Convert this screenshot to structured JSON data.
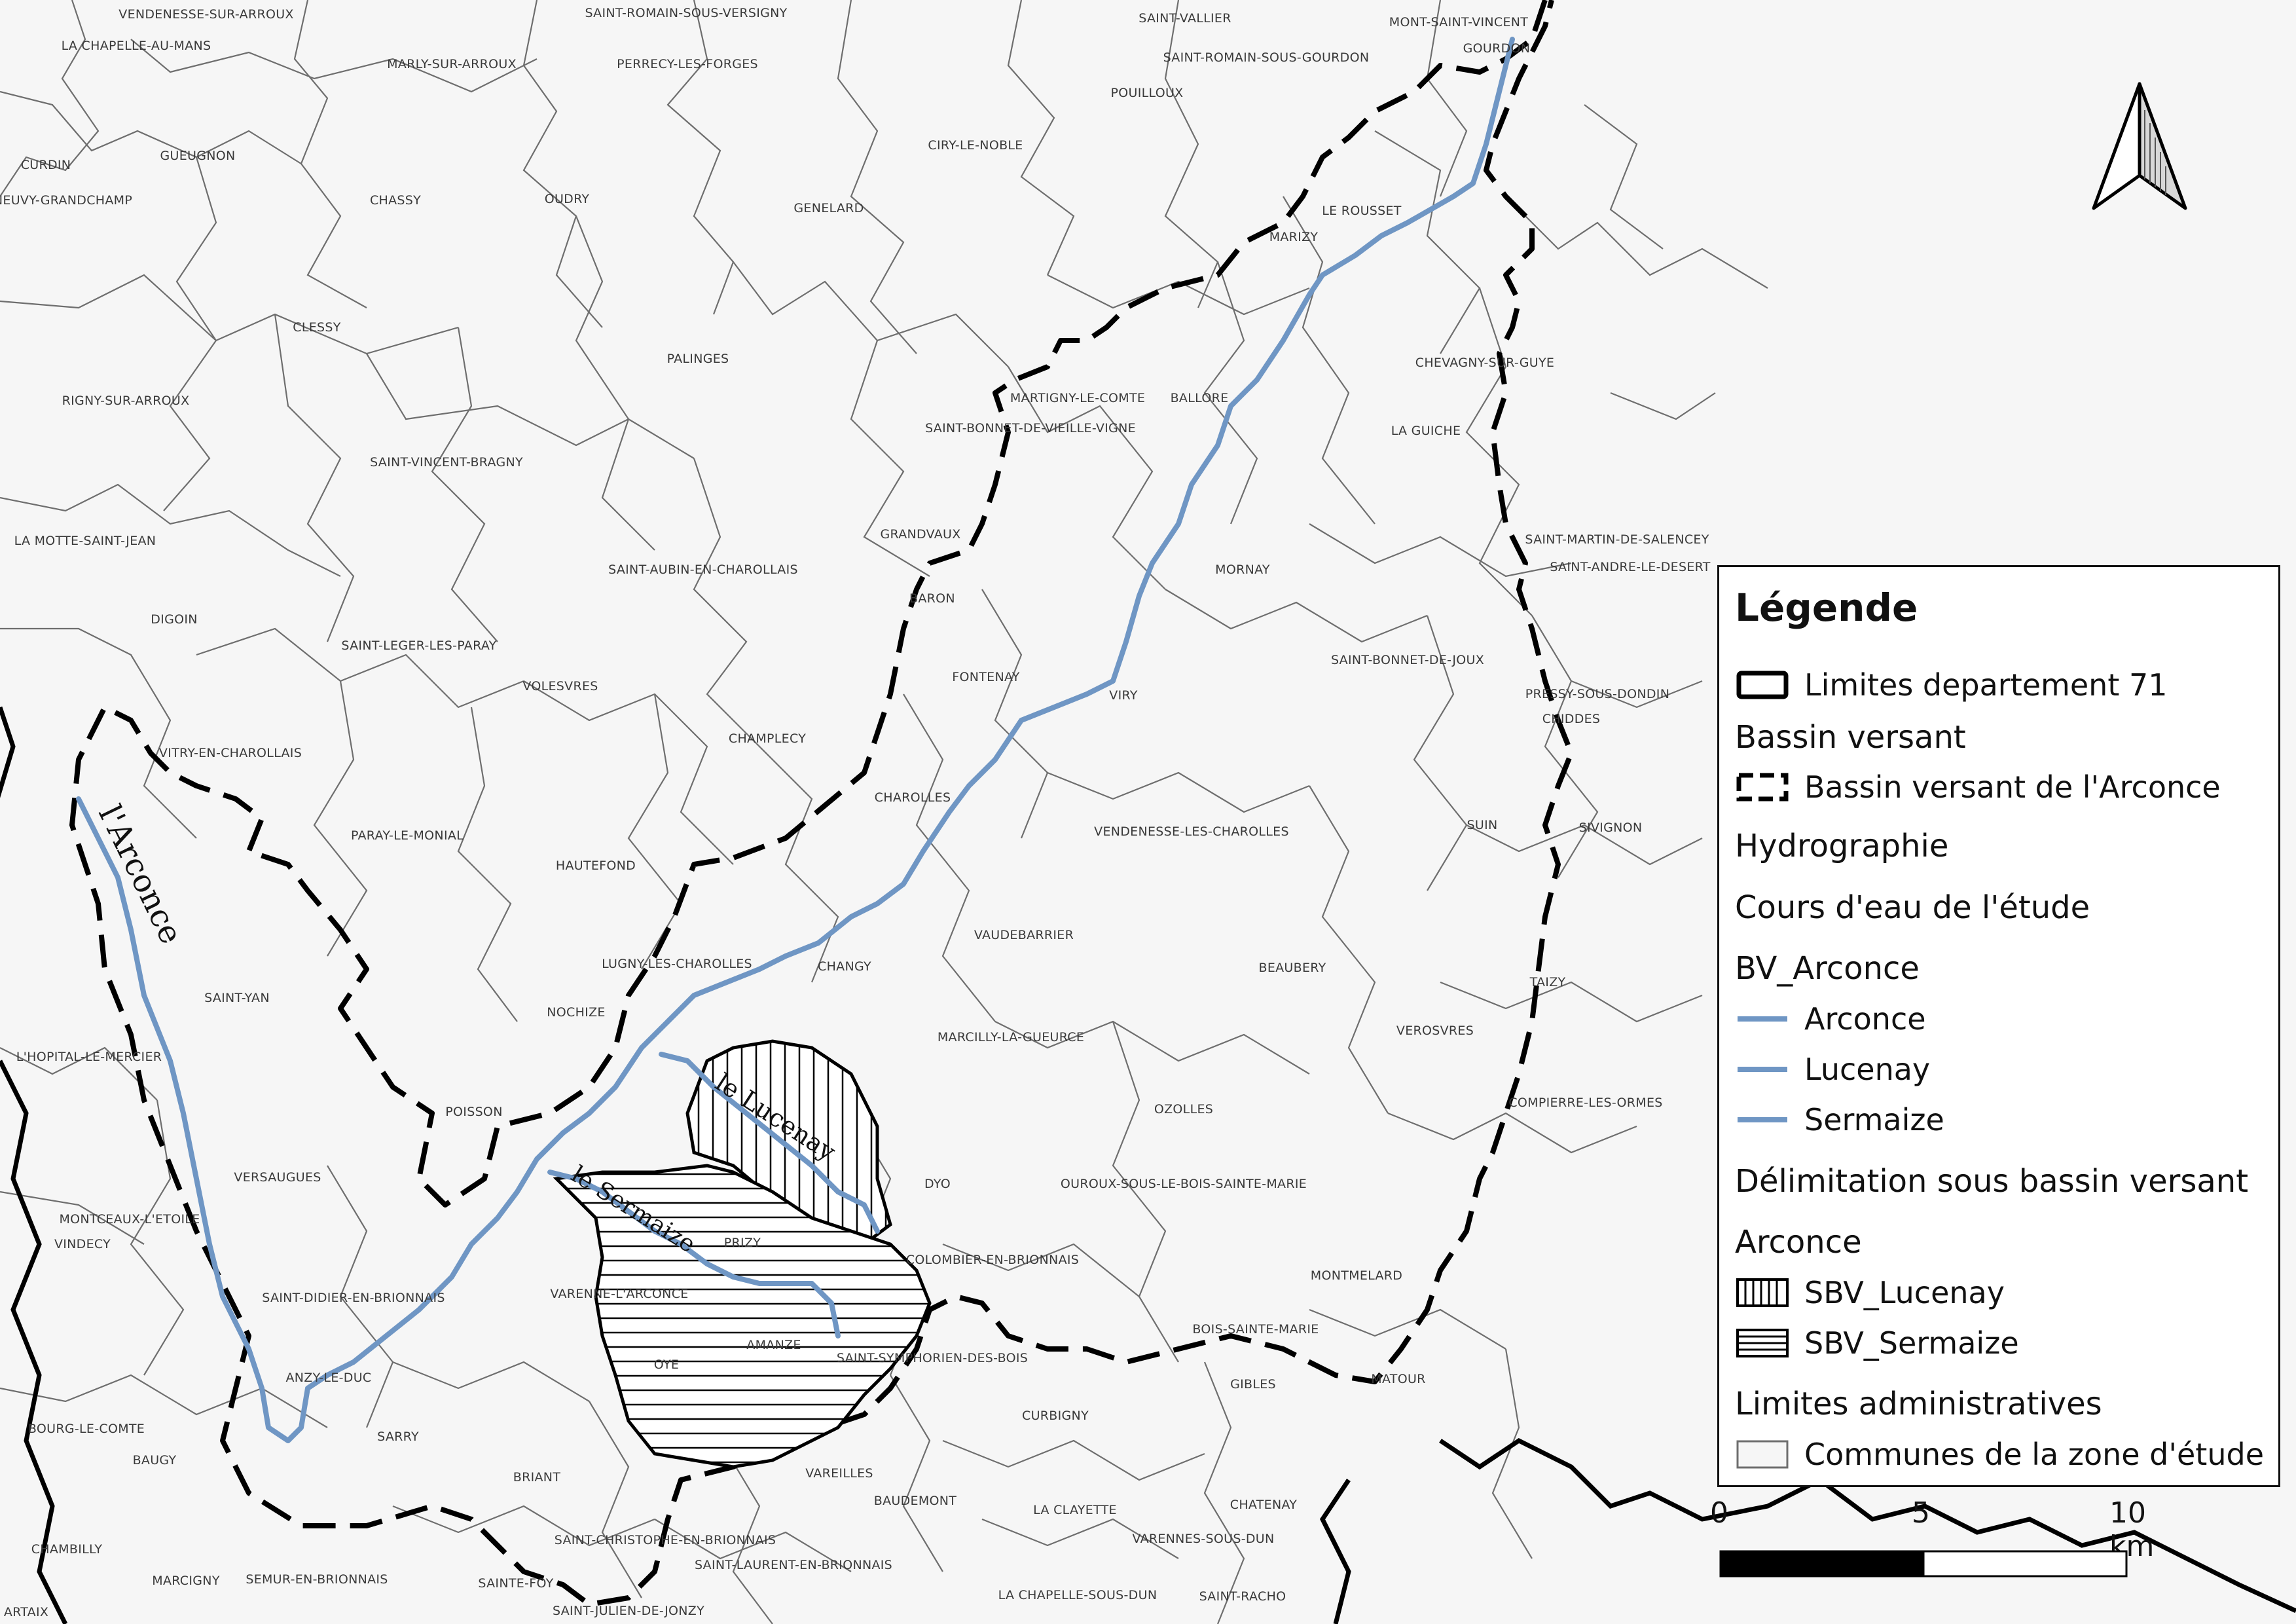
{
  "map": {
    "colors": {
      "background": "#ffffff",
      "commune_fill": "#f6f6f6",
      "commune_border": "#6e6e6e",
      "river": "#6f96c4",
      "boundary": "#000000"
    },
    "rivers": [
      {
        "name": "Arconce",
        "label": "l'Arconce"
      },
      {
        "name": "Lucenay",
        "label": "le Lucenay"
      },
      {
        "name": "Sermaize",
        "label": "le Sermaize"
      }
    ],
    "communes": [
      "VENDENESSE-SUR-ARROUX",
      "SAINT-ROMAIN-SOUS-VERSIGNY",
      "SAINT-VALLIER",
      "MONT-SAINT-VINCENT",
      "LA CHAPELLE-AU-MANS",
      "MARLY-SUR-ARROUX",
      "PERRECY-LES-FORGES",
      "SAINT-ROMAIN-SOUS-GOURDON",
      "GOURDON",
      "POUILLOUX",
      "CURDIN",
      "GUEUGNON",
      "CIRY-LE-NOBLE",
      "NEUVY-GRANDCHAMP",
      "CHASSY",
      "OUDRY",
      "GENELARD",
      "LE ROUSSET",
      "MARIZY",
      "CLESSY",
      "PALINGES",
      "CHEVAGNY-SUR-GUYE",
      "RIGNY-SUR-ARROUX",
      "MARTIGNY-LE-COMTE",
      "BALLORE",
      "SAINT-BONNET-DE-VIEILLE-VIGNE",
      "LA GUICHE",
      "SAINT-VINCENT-BRAGNY",
      "GRANDVAUX",
      "SAINT-MARTIN-DE-SALENCEY",
      "LA MOTTE-SAINT-JEAN",
      "SAINT-AUBIN-EN-CHAROLLAIS",
      "MORNAY",
      "SAINT-ANDRE-LE-DESERT",
      "BARON",
      "DIGOIN",
      "SAINT-LEGER-LES-PARAY",
      "SAINT-BONNET-DE-JOUX",
      "FONTENAY",
      "VOLESVRES",
      "VIRY",
      "PRESSY-SOUS-DONDIN",
      "CHIDDES",
      "CHAMPLECY",
      "VITRY-EN-CHAROLLAIS",
      "CHAROLLES",
      "SUIN",
      "SIVIGNON",
      "VENDENESSE-LES-CHAROLLES",
      "PARAY-LE-MONIAL",
      "HAUTEFOND",
      "VAUDEBARRIER",
      "BEAUBERY",
      "LUGNY-LES-CHAROLLES",
      "CHANGY",
      "TAIZY",
      "SAINT-YAN",
      "NOCHIZE",
      "VEROSVRES",
      "MARCILLY-LA-GUEURCE",
      "L'HOPITAL-LE-MERCIER",
      "POISSON",
      "OZOLLES",
      "COMPIERRE-LES-ORMES",
      "VERSAUGUES",
      "DYO",
      "OUROUX-SOUS-LE-BOIS-SAINTE-MARIE",
      "MONTCEAUX-L'ETOILE",
      "VINDECY",
      "PRIZY",
      "COLOMBIER-EN-BRIONNAIS",
      "MONTMELARD",
      "SAINT-DIDIER-EN-BRIONNAIS",
      "VARENNE-L'ARCONCE",
      "BOIS-SAINTE-MARIE",
      "AMANZE",
      "SAINT-SYMPHORIEN-DES-BOIS",
      "OYE",
      "ANZY-LE-DUC",
      "GIBLES",
      "MATOUR",
      "BOURG-LE-COMTE",
      "CURBIGNY",
      "SARRY",
      "BAUGY",
      "VAREILLES",
      "BRIANT",
      "BAUDEMONT",
      "LA CLAYETTE",
      "CHATENAY",
      "CHAMBILLY",
      "SAINT-CHRISTOPHE-EN-BRIONNAIS",
      "VARENNES-SOUS-DUN",
      "MARCIGNY",
      "SEMUR-EN-BRIONNAIS",
      "SAINT-LAURENT-EN-BRIONNAIS",
      "SAINTE-FOY",
      "LA CHAPELLE-SOUS-DUN",
      "SAINT-RACHO",
      "ARTAIX",
      "SAINT-JULIEN-DE-JONZY"
    ]
  },
  "legend": {
    "title": "Légende",
    "items": {
      "departement": "Limites departement 71",
      "bassin_group": "Bassin versant",
      "bassin": "Bassin versant de l'Arconce",
      "hydro_group": "Hydrographie",
      "cours_group": "Cours d'eau de l'étude",
      "bv_group": "BV_Arconce",
      "arconce": "Arconce",
      "lucenay": "Lucenay",
      "sermaize": "Sermaize",
      "delim_group": "Délimitation sous bassin versant",
      "arconce_group": "Arconce",
      "sbv_lucenay": "SBV_Lucenay",
      "sbv_sermaize": "SBV_Sermaize",
      "admin_group": "Limites administratives",
      "communes": "Communes de la zone d'étude"
    }
  },
  "scale": {
    "ticks": [
      "0",
      "5",
      "10 km"
    ]
  },
  "north_arrow": {
    "icon": "north-arrow-icon"
  }
}
